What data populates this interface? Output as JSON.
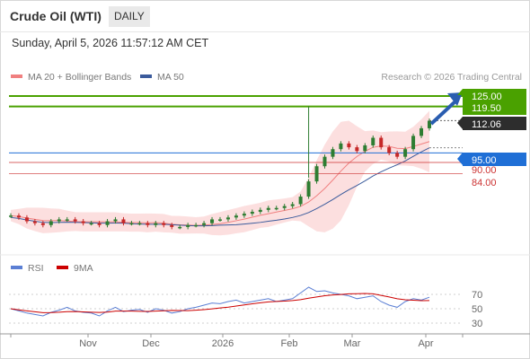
{
  "header": {
    "title": "Crude Oil (WTI)",
    "period": "DAILY"
  },
  "timestamp": "Sunday, April 5, 2026 11:57:12 AM CET",
  "legend": {
    "ma20": "MA 20 + Bollinger Bands",
    "ma50": "MA 50",
    "credit": "Research © 2026 Trading Central"
  },
  "rsi_legend": {
    "rsi": "RSI",
    "ma": "9MA"
  },
  "colors": {
    "target": "#4aa100",
    "price_box": "#2d2d2d",
    "pivot": "#1f6fd6",
    "support": "#cc3333",
    "ma20": "#f08080",
    "ma50": "#3b5b9c",
    "band": "#fbd7d7",
    "rsi": "#5b7fd4",
    "rsi_ma": "#cc0000",
    "candle_up": "#2e7d32",
    "candle_down": "#c62828"
  },
  "chart_data": {
    "type": "candlestick",
    "x_labels": [
      "Nov",
      "Dec",
      "2026",
      "Feb",
      "Mar",
      "Apr"
    ],
    "price_levels": {
      "targets": [
        "125.00",
        "119.50"
      ],
      "last": "112.06",
      "pivot": "95.00",
      "supports": [
        "90.00",
        "84.00"
      ]
    },
    "price_series": [
      62,
      61,
      59,
      58,
      57,
      59,
      60,
      60,
      59,
      58,
      58,
      57,
      59,
      60,
      58,
      58,
      58,
      57,
      58,
      57,
      56,
      56,
      57,
      57,
      58,
      60,
      60,
      61,
      62,
      63,
      64,
      65,
      66,
      66,
      67,
      68,
      72,
      80,
      88,
      93,
      97,
      100,
      98,
      96,
      99,
      103,
      98,
      95,
      93,
      97,
      104,
      108,
      112
    ],
    "rsi_axis_ticks": [
      "70",
      "50",
      "30"
    ],
    "rsi_series": [
      50,
      47,
      44,
      42,
      40,
      45,
      48,
      52,
      47,
      45,
      44,
      40,
      47,
      52,
      46,
      48,
      49,
      45,
      50,
      48,
      44,
      46,
      50,
      52,
      55,
      58,
      57,
      60,
      62,
      58,
      60,
      62,
      64,
      60,
      62,
      64,
      72,
      80,
      74,
      75,
      72,
      70,
      68,
      64,
      66,
      68,
      60,
      55,
      52,
      60,
      64,
      62,
      66
    ]
  }
}
